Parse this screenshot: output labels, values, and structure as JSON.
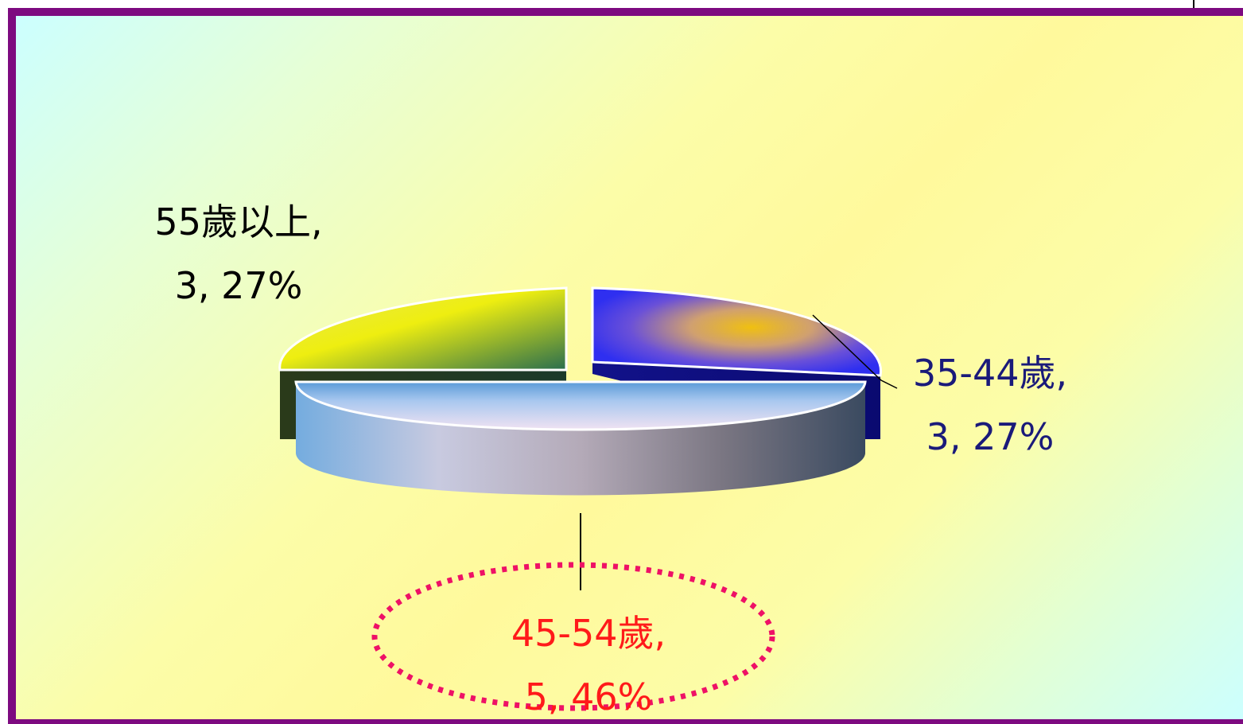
{
  "chart_data": {
    "type": "pie",
    "style": "3d-exploded",
    "series": [
      {
        "name": "",
        "slices": [
          {
            "label": "35-44歲",
            "value": 3,
            "percent": "27%",
            "label_line1": "35-44歲,",
            "label_line2": "3, 27%",
            "label_color": "#1a1a7a",
            "color": "#2f2ff0"
          },
          {
            "label": "45-54歲",
            "value": 5,
            "percent": "46%",
            "label_line1": "45-54歲,",
            "label_line2": "5, 46%",
            "label_color": "#ff1a1a",
            "color": "#a9c8ef",
            "highlighted": true
          },
          {
            "label": "55歲以上",
            "value": 3,
            "percent": "27%",
            "label_line1": "55歲以上,",
            "label_line2": "3, 27%",
            "label_color": "#000000",
            "color": "#eeee10"
          }
        ]
      }
    ],
    "highlight_color": "#ee1166",
    "legend": "none"
  }
}
